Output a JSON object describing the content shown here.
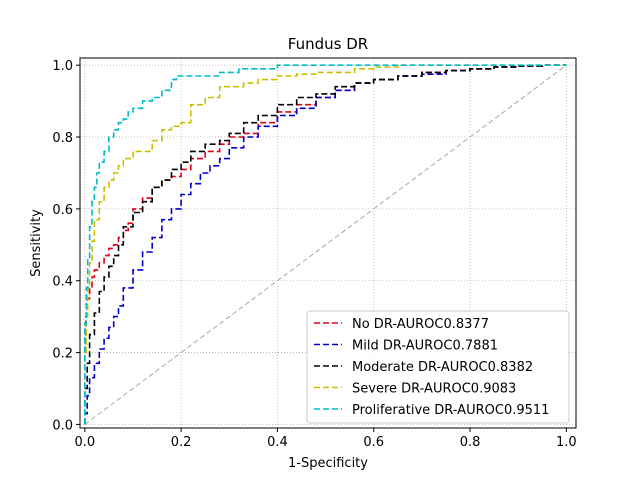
{
  "chart_data": {
    "type": "line",
    "title": "Fundus DR",
    "xlabel": "1-Specificity",
    "ylabel": "Sensitivity",
    "xlim": [
      -0.01,
      1.02
    ],
    "ylim": [
      -0.01,
      1.02
    ],
    "xticks": [
      "0.0",
      "0.2",
      "0.4",
      "0.6",
      "0.8",
      "1.0"
    ],
    "yticks": [
      "0.0",
      "0.2",
      "0.4",
      "0.6",
      "0.8",
      "1.0"
    ],
    "grid": true,
    "legend_position": "lower-right",
    "chance_line": {
      "x": [
        0,
        1
      ],
      "y": [
        0,
        1
      ],
      "color": "#a8a8a8"
    },
    "series": [
      {
        "name": "No DR-AUROC0.8377",
        "color": "#e0001b",
        "x": [
          0,
          0.002,
          0.005,
          0.01,
          0.015,
          0.02,
          0.03,
          0.04,
          0.05,
          0.06,
          0.07,
          0.08,
          0.09,
          0.1,
          0.12,
          0.14,
          0.16,
          0.18,
          0.2,
          0.22,
          0.25,
          0.28,
          0.3,
          0.33,
          0.36,
          0.4,
          0.44,
          0.48,
          0.52,
          0.56,
          0.6,
          0.65,
          0.7,
          0.75,
          0.8,
          0.85,
          0.9,
          0.95,
          1.0
        ],
        "y": [
          0,
          0.2,
          0.3,
          0.35,
          0.38,
          0.41,
          0.43,
          0.45,
          0.47,
          0.49,
          0.5,
          0.52,
          0.54,
          0.56,
          0.6,
          0.63,
          0.66,
          0.68,
          0.69,
          0.71,
          0.74,
          0.76,
          0.78,
          0.8,
          0.81,
          0.84,
          0.87,
          0.89,
          0.91,
          0.93,
          0.95,
          0.96,
          0.97,
          0.98,
          0.985,
          0.99,
          0.995,
          0.998,
          1.0
        ]
      },
      {
        "name": "Mild DR-AUROC0.7881",
        "color": "#0000c8",
        "x": [
          0,
          0.005,
          0.01,
          0.02,
          0.03,
          0.04,
          0.05,
          0.06,
          0.07,
          0.08,
          0.1,
          0.12,
          0.14,
          0.16,
          0.18,
          0.2,
          0.22,
          0.24,
          0.26,
          0.28,
          0.3,
          0.33,
          0.36,
          0.4,
          0.44,
          0.48,
          0.52,
          0.56,
          0.6,
          0.65,
          0.7,
          0.75,
          0.8,
          0.85,
          0.9,
          0.95,
          1.0
        ],
        "y": [
          0,
          0.03,
          0.08,
          0.13,
          0.17,
          0.21,
          0.24,
          0.27,
          0.3,
          0.33,
          0.38,
          0.43,
          0.48,
          0.52,
          0.57,
          0.6,
          0.64,
          0.67,
          0.7,
          0.72,
          0.74,
          0.77,
          0.8,
          0.83,
          0.86,
          0.88,
          0.91,
          0.93,
          0.95,
          0.96,
          0.97,
          0.975,
          0.985,
          0.99,
          0.995,
          0.998,
          1.0
        ]
      },
      {
        "name": "Moderate DR-AUROC0.8382",
        "color": "#000000",
        "x": [
          0,
          0.005,
          0.01,
          0.02,
          0.03,
          0.04,
          0.05,
          0.06,
          0.07,
          0.08,
          0.1,
          0.12,
          0.14,
          0.16,
          0.18,
          0.2,
          0.22,
          0.25,
          0.28,
          0.3,
          0.33,
          0.36,
          0.4,
          0.44,
          0.48,
          0.52,
          0.56,
          0.6,
          0.65,
          0.7,
          0.75,
          0.8,
          0.85,
          0.9,
          0.95,
          1.0
        ],
        "y": [
          0,
          0.1,
          0.17,
          0.25,
          0.31,
          0.37,
          0.41,
          0.44,
          0.47,
          0.5,
          0.55,
          0.59,
          0.62,
          0.66,
          0.68,
          0.71,
          0.73,
          0.76,
          0.78,
          0.79,
          0.81,
          0.84,
          0.86,
          0.89,
          0.91,
          0.92,
          0.94,
          0.95,
          0.96,
          0.97,
          0.98,
          0.985,
          0.99,
          0.995,
          0.998,
          1.0
        ]
      },
      {
        "name": "Severe DR-AUROC0.9083",
        "color": "#c8c000",
        "x": [
          0,
          0.003,
          0.006,
          0.01,
          0.015,
          0.02,
          0.03,
          0.04,
          0.05,
          0.06,
          0.07,
          0.08,
          0.1,
          0.12,
          0.14,
          0.16,
          0.18,
          0.2,
          0.22,
          0.25,
          0.28,
          0.3,
          0.33,
          0.36,
          0.4,
          0.44,
          0.48,
          0.52,
          0.56,
          0.6,
          0.65,
          0.7,
          0.75,
          0.8,
          0.85,
          1.0
        ],
        "y": [
          0,
          0.2,
          0.3,
          0.38,
          0.45,
          0.51,
          0.57,
          0.62,
          0.66,
          0.68,
          0.7,
          0.72,
          0.74,
          0.76,
          0.76,
          0.79,
          0.82,
          0.83,
          0.84,
          0.89,
          0.91,
          0.94,
          0.94,
          0.95,
          0.96,
          0.97,
          0.975,
          0.98,
          0.98,
          0.99,
          0.995,
          1.0,
          1.0,
          1.0,
          1.0,
          1.0
        ]
      },
      {
        "name": "Proliferative DR-AUROC0.9511",
        "color": "#00bcc8",
        "x": [
          0,
          0.003,
          0.006,
          0.01,
          0.015,
          0.02,
          0.025,
          0.03,
          0.04,
          0.05,
          0.06,
          0.07,
          0.08,
          0.09,
          0.1,
          0.11,
          0.12,
          0.14,
          0.16,
          0.18,
          0.19,
          0.2,
          0.24,
          0.28,
          0.32,
          0.36,
          0.4,
          0.44,
          0.5,
          0.6,
          0.7,
          1.0
        ],
        "y": [
          0,
          0.28,
          0.38,
          0.46,
          0.55,
          0.62,
          0.66,
          0.7,
          0.73,
          0.76,
          0.8,
          0.82,
          0.84,
          0.85,
          0.87,
          0.88,
          0.88,
          0.9,
          0.91,
          0.93,
          0.96,
          0.97,
          0.97,
          0.97,
          0.98,
          0.99,
          0.99,
          1.0,
          1.0,
          1.0,
          1.0,
          1.0
        ]
      }
    ]
  }
}
